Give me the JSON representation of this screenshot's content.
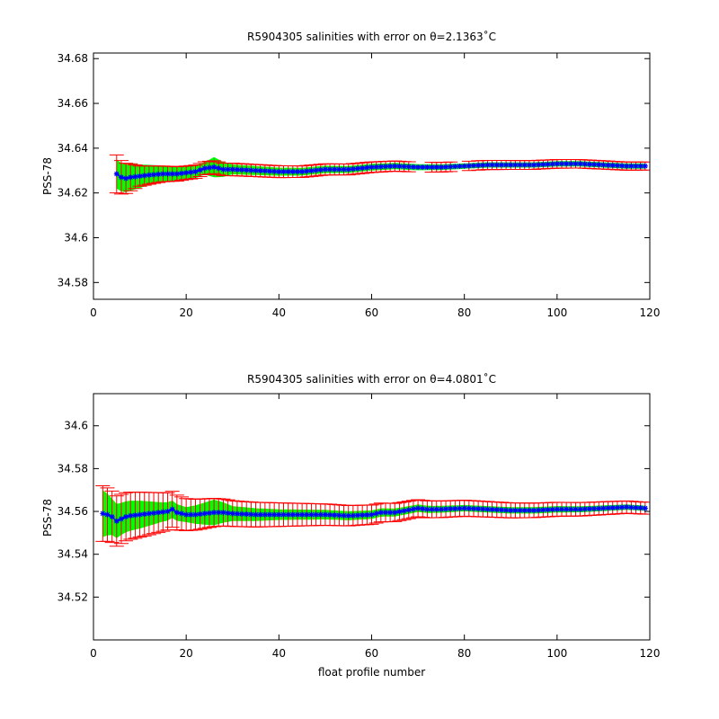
{
  "colors": {
    "background": "#ffffff",
    "axes": "#000000",
    "error_bar": "#ff0000",
    "band": "#00ff00",
    "band_edge": "#00aa00",
    "series": "#0000ff"
  },
  "chart_data": [
    {
      "type": "line",
      "title": "R5904305 salinities with error on θ=2.1363˚C",
      "xlabel": "",
      "ylabel": "PSS-78",
      "xlim": [
        0,
        120
      ],
      "ylim": [
        34.5725,
        34.6825
      ],
      "xticks": [
        0,
        20,
        40,
        60,
        80,
        100,
        120
      ],
      "xtick_labels": [
        "0",
        "20",
        "40",
        "60",
        "80",
        "100",
        "120"
      ],
      "yticks": [
        34.58,
        34.6,
        34.62,
        34.64,
        34.66,
        34.68
      ],
      "ytick_labels": [
        "34.58",
        "34.6",
        "34.62",
        "34.64",
        "34.66",
        "34.68"
      ],
      "grid": false,
      "anchors_x": [
        5,
        6,
        7,
        8,
        10,
        12,
        15,
        18,
        20,
        22,
        24,
        26,
        28,
        30,
        35,
        40,
        45,
        50,
        55,
        60,
        65,
        70,
        75,
        80,
        85,
        90,
        95,
        100,
        105,
        110,
        115,
        119
      ],
      "anchors_y": [
        34.6285,
        34.627,
        34.6265,
        34.627,
        34.6275,
        34.628,
        34.6285,
        34.6285,
        34.629,
        34.6295,
        34.631,
        34.6315,
        34.6305,
        34.6305,
        34.63,
        34.6295,
        34.6295,
        34.6305,
        34.6305,
        34.6315,
        34.632,
        34.6315,
        34.6315,
        34.632,
        34.6325,
        34.6325,
        34.6325,
        34.633,
        34.633,
        34.6325,
        34.632,
        34.632
      ],
      "band_half_width_x": [
        5,
        8,
        12,
        16,
        20,
        24,
        26,
        30,
        40,
        60,
        80,
        100,
        119
      ],
      "band_half_width": [
        0.0065,
        0.006,
        0.0045,
        0.0035,
        0.003,
        0.0028,
        0.0045,
        0.0022,
        0.0018,
        0.0015,
        0.0012,
        0.0012,
        0.0012
      ],
      "error_half_width_x": [
        5,
        6,
        8,
        10,
        15,
        20,
        30,
        50,
        70,
        90,
        119
      ],
      "error_half_width": [
        0.0085,
        0.0075,
        0.006,
        0.0045,
        0.0035,
        0.003,
        0.0028,
        0.0025,
        0.0022,
        0.002,
        0.0018
      ],
      "missing_x": [
        69,
        70,
        71,
        72,
        78,
        79,
        80,
        82
      ],
      "points_start": 5,
      "points_end": 119
    },
    {
      "type": "line",
      "title": "R5904305 salinities with error on θ=4.0801˚C",
      "xlabel": "float profile number",
      "ylabel": "PSS-78",
      "xlim": [
        0,
        120
      ],
      "ylim": [
        34.5,
        34.615
      ],
      "xticks": [
        0,
        20,
        40,
        60,
        80,
        100,
        120
      ],
      "xtick_labels": [
        "0",
        "20",
        "40",
        "60",
        "80",
        "100",
        "120"
      ],
      "yticks": [
        34.52,
        34.54,
        34.56,
        34.58,
        34.6
      ],
      "ytick_labels": [
        "34.52",
        "34.54",
        "34.56",
        "34.58",
        "34.6"
      ],
      "grid": false,
      "anchors_x": [
        2,
        3,
        4,
        5,
        6,
        7,
        8,
        10,
        12,
        14,
        16,
        17,
        18,
        20,
        22,
        24,
        26,
        28,
        30,
        35,
        40,
        45,
        50,
        55,
        60,
        62,
        65,
        70,
        72,
        75,
        80,
        85,
        90,
        95,
        100,
        105,
        110,
        115,
        119
      ],
      "anchors_y": [
        34.559,
        34.5585,
        34.5575,
        34.5555,
        34.5565,
        34.5575,
        34.558,
        34.5585,
        34.559,
        34.5595,
        34.56,
        34.561,
        34.5595,
        34.5585,
        34.5585,
        34.559,
        34.5595,
        34.5595,
        34.559,
        34.5585,
        34.5585,
        34.5585,
        34.5585,
        34.558,
        34.5585,
        34.5595,
        34.5595,
        34.5615,
        34.561,
        34.561,
        34.5615,
        34.561,
        34.5605,
        34.5605,
        34.561,
        34.561,
        34.5615,
        34.562,
        34.5615
      ],
      "band_half_width_x": [
        2,
        4,
        6,
        8,
        10,
        15,
        20,
        26,
        30,
        40,
        60,
        80,
        100,
        119
      ],
      "band_half_width": [
        0.011,
        0.0085,
        0.0075,
        0.007,
        0.0065,
        0.0045,
        0.0035,
        0.006,
        0.0035,
        0.0025,
        0.002,
        0.0015,
        0.0015,
        0.0012
      ],
      "error_half_width_x": [
        2,
        4,
        6,
        8,
        10,
        15,
        20,
        30,
        50,
        70,
        90,
        119
      ],
      "error_half_width": [
        0.013,
        0.012,
        0.0115,
        0.011,
        0.0105,
        0.009,
        0.0075,
        0.006,
        0.005,
        0.004,
        0.0035,
        0.0028
      ],
      "missing_x": [],
      "points_start": 2,
      "points_end": 119
    }
  ]
}
